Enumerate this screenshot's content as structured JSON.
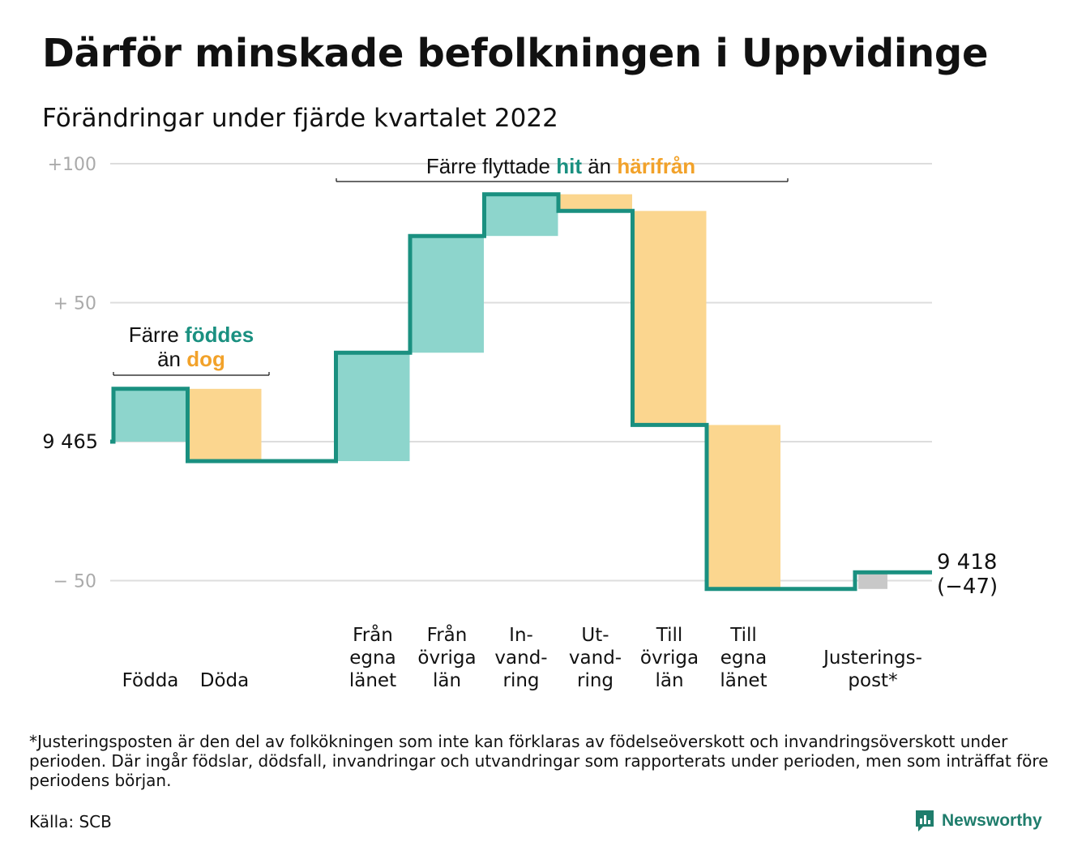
{
  "title": "Därför minskade befolkningen i Uppvidinge",
  "subtitle": "Förändringar under fjärde kvartalet 2022",
  "chart_data": {
    "type": "waterfall",
    "start_value": 9465,
    "start_label": "9 465",
    "end_label": "9 418",
    "end_change_label": "(−47)",
    "y_ticks": [
      {
        "value": 100,
        "label": "+100"
      },
      {
        "value": 50,
        "label": "+ 50"
      },
      {
        "value": -50,
        "label": "− 50"
      }
    ],
    "ylim": [
      -55,
      100
    ],
    "grid": true,
    "steps": [
      {
        "key": "fodda",
        "label": [
          "Födda"
        ],
        "delta": 19,
        "kind": "in"
      },
      {
        "key": "doda",
        "label": [
          "Döda"
        ],
        "delta": -26,
        "kind": "out"
      },
      {
        "key": "gap",
        "label": [],
        "delta": 0,
        "kind": "none"
      },
      {
        "key": "fran-egna-lanet",
        "label": [
          "Från",
          "egna",
          "länet"
        ],
        "delta": 39,
        "kind": "in"
      },
      {
        "key": "fran-ovriga-lan",
        "label": [
          "Från",
          "övriga",
          "län"
        ],
        "delta": 42,
        "kind": "in"
      },
      {
        "key": "invandring",
        "label": [
          "In-",
          "vand-",
          "ring"
        ],
        "delta": 15,
        "kind": "in"
      },
      {
        "key": "utvandring",
        "label": [
          "Ut-",
          "vand-",
          "ring"
        ],
        "delta": -6,
        "kind": "out"
      },
      {
        "key": "till-ovriga-lan",
        "label": [
          "Till",
          "övriga",
          "län"
        ],
        "delta": -77,
        "kind": "out"
      },
      {
        "key": "till-egna-lanet",
        "label": [
          "Till",
          "egna",
          "länet"
        ],
        "delta": -59,
        "kind": "out"
      },
      {
        "key": "gap2",
        "label": [],
        "delta": 0,
        "kind": "none"
      },
      {
        "key": "justeringspost",
        "label": [
          "Justerings-",
          "post*"
        ],
        "delta": 6,
        "kind": "adjust"
      }
    ],
    "annotations": {
      "births": {
        "line1": "Färre",
        "hl1": "föddes",
        "line2": "än",
        "hl2": "dog"
      },
      "migration": {
        "pre": "Färre flyttade",
        "hl1": "hit",
        "mid": "än",
        "hl2": "härifrån"
      }
    },
    "colors": {
      "in_fill": "#8dd5cc",
      "out_fill": "#fbd68f",
      "adjust_fill": "#c8c8c8",
      "line": "#1a9080",
      "in_text": "#1a9080",
      "out_text": "#f2a22a",
      "grid": "#dddddd",
      "tick_text": "#aaaaaa"
    }
  },
  "footnote": "*Justeringsposten är den del av folkökningen som inte kan förklaras av födelseöverskott och invandringsöverskott under perioden. Där ingår födslar, dödsfall, invandringar och utvandringar som rapporterats under perioden, men som inträffat före periodens början.",
  "source": "Källa: SCB",
  "brand": {
    "name": "Newsworthy",
    "icon": "newsworthy-logo-icon",
    "color": "#1f7d6c"
  }
}
